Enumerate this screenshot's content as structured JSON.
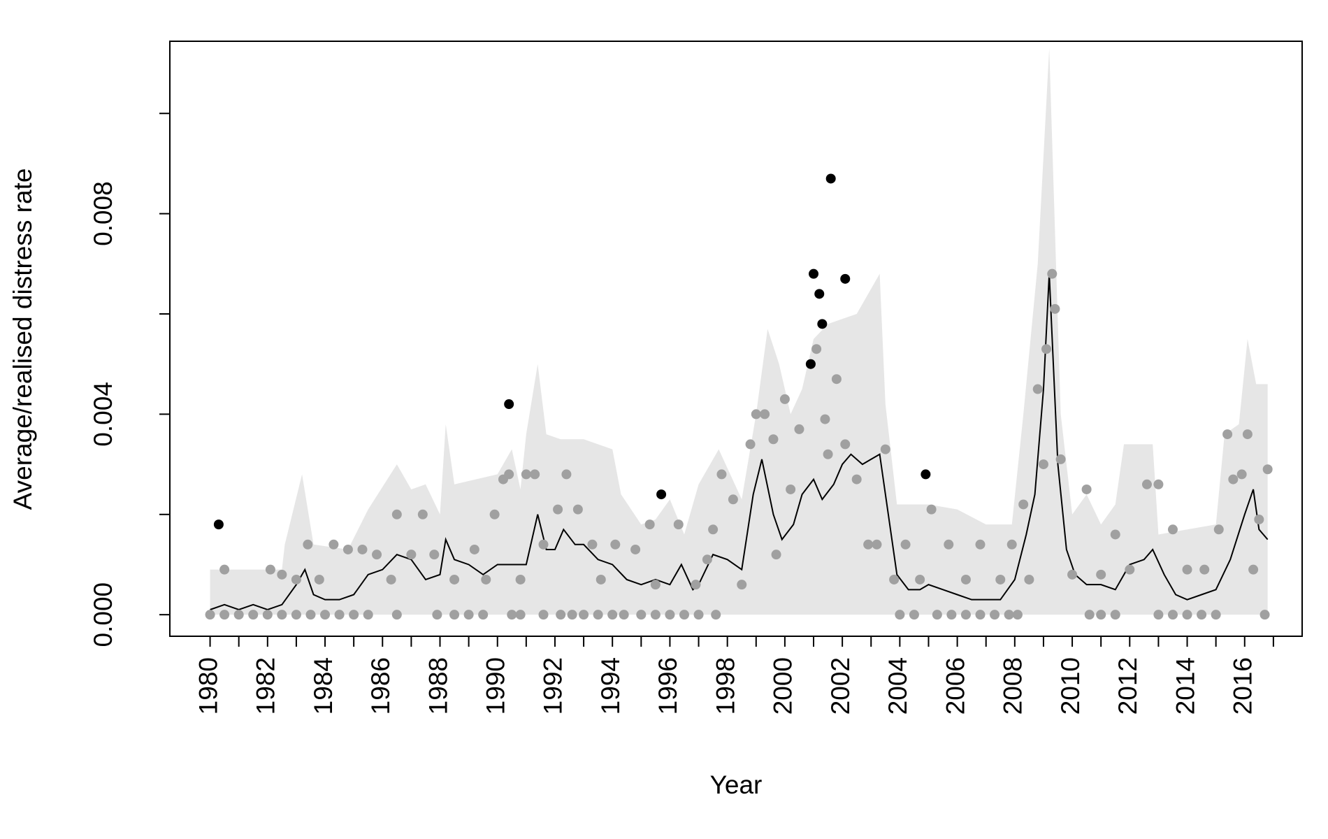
{
  "chart_data": {
    "type": "line",
    "xlabel": "Year",
    "ylabel": "Average/realised distress rate",
    "xlim": [
      1978.6,
      2018.0
    ],
    "ylim": [
      -0.00043,
      0.01144
    ],
    "xticks": [
      1980,
      1982,
      1984,
      1986,
      1988,
      1990,
      1992,
      1994,
      1996,
      1998,
      2000,
      2002,
      2004,
      2006,
      2008,
      2010,
      2012,
      2014,
      2016
    ],
    "xminor_ticks": [
      1981,
      1983,
      1985,
      1987,
      1989,
      1991,
      1993,
      1995,
      1997,
      1999,
      2001,
      2003,
      2005,
      2007,
      2009,
      2011,
      2013,
      2015,
      2017
    ],
    "yticks": [
      {
        "value": 0,
        "label": "0.000"
      },
      {
        "value": 0.004,
        "label": "0.004"
      },
      {
        "value": 0.008,
        "label": "0.008"
      }
    ],
    "yminor_ticks": [
      0.002,
      0.006,
      0.01
    ],
    "grid": false,
    "series": [
      {
        "type": "area",
        "color": "#e6e6e6",
        "x": [
          1980,
          1982.5,
          1982.6,
          1983.2,
          1983.6,
          1984.8,
          1985.5,
          1986.5,
          1987,
          1987.5,
          1988,
          1988.2,
          1988.5,
          1990,
          1990.5,
          1990.8,
          1991,
          1991.4,
          1991.7,
          1992.2,
          1993,
          1994,
          1994.3,
          1995,
          1995.5,
          1996,
          1996.5,
          1997,
          1997.7,
          1998.5,
          1999,
          1999.4,
          1999.8,
          2000.2,
          2000.6,
          2001,
          2001.5,
          2002,
          2002.5,
          2003,
          2003.3,
          2003.5,
          2003.9,
          2005,
          2006,
          2007,
          2007.9,
          2008.3,
          2008.8,
          2009.2,
          2009.6,
          2010,
          2010.5,
          2011,
          2011.5,
          2011.8,
          2012.8,
          2013,
          2015,
          2015.3,
          2015.8,
          2016.1,
          2016.4,
          2016.8
        ],
        "values": [
          0.0009,
          0.0009,
          0.0014,
          0.0028,
          0.0014,
          0.0013,
          0.0021,
          0.003,
          0.0025,
          0.0026,
          0.002,
          0.0038,
          0.0026,
          0.0028,
          0.0033,
          0.0025,
          0.0036,
          0.005,
          0.0036,
          0.0035,
          0.0035,
          0.0033,
          0.0024,
          0.0018,
          0.0019,
          0.0023,
          0.0016,
          0.0026,
          0.0033,
          0.0023,
          0.004,
          0.0057,
          0.005,
          0.004,
          0.0045,
          0.0055,
          0.0058,
          0.0059,
          0.006,
          0.0065,
          0.0068,
          0.0042,
          0.0022,
          0.0022,
          0.0021,
          0.0018,
          0.0018,
          0.004,
          0.007,
          0.0113,
          0.004,
          0.002,
          0.0024,
          0.0018,
          0.0022,
          0.0034,
          0.0034,
          0.0016,
          0.0018,
          0.0036,
          0.0038,
          0.0055,
          0.0046,
          0.0046
        ]
      },
      {
        "type": "line",
        "color": "#000000",
        "x": [
          1980,
          1980.5,
          1981,
          1981.5,
          1982,
          1982.5,
          1983,
          1983.3,
          1983.6,
          1984,
          1984.5,
          1985,
          1985.5,
          1986,
          1986.5,
          1987,
          1987.5,
          1988,
          1988.2,
          1988.5,
          1989,
          1989.5,
          1990,
          1990.5,
          1991,
          1991.4,
          1991.7,
          1992,
          1992.3,
          1992.7,
          1993,
          1993.5,
          1994,
          1994.5,
          1995,
          1995.5,
          1996,
          1996.4,
          1996.8,
          1997,
          1997.5,
          1998,
          1998.5,
          1998.9,
          1999.2,
          1999.6,
          1999.9,
          2000.3,
          2000.6,
          2001,
          2001.3,
          2001.7,
          2002,
          2002.3,
          2002.7,
          2003,
          2003.3,
          2003.6,
          2003.9,
          2004.3,
          2004.7,
          2005,
          2005.5,
          2006,
          2006.5,
          2007,
          2007.5,
          2008,
          2008.4,
          2008.7,
          2009,
          2009.2,
          2009.5,
          2009.8,
          2010.1,
          2010.5,
          2011,
          2011.5,
          2012,
          2012.5,
          2012.8,
          2013.2,
          2013.6,
          2014,
          2014.5,
          2015,
          2015.5,
          2016,
          2016.3,
          2016.5,
          2016.8
        ],
        "values": [
          0.0001,
          0.0002,
          0.0001,
          0.0002,
          0.0001,
          0.0002,
          0.0006,
          0.0009,
          0.0004,
          0.0003,
          0.0003,
          0.0004,
          0.0008,
          0.0009,
          0.0012,
          0.0011,
          0.0007,
          0.0008,
          0.0015,
          0.0011,
          0.001,
          0.0008,
          0.001,
          0.001,
          0.001,
          0.002,
          0.0013,
          0.0013,
          0.0017,
          0.0014,
          0.0014,
          0.0011,
          0.001,
          0.0007,
          0.0006,
          0.0007,
          0.0006,
          0.001,
          0.0005,
          0.0006,
          0.0012,
          0.0011,
          0.0009,
          0.0024,
          0.0031,
          0.002,
          0.0015,
          0.0018,
          0.0024,
          0.0027,
          0.0023,
          0.0026,
          0.003,
          0.0032,
          0.003,
          0.0031,
          0.0032,
          0.002,
          0.0008,
          0.0005,
          0.0005,
          0.0006,
          0.0005,
          0.0004,
          0.0003,
          0.0003,
          0.0003,
          0.0007,
          0.0016,
          0.0024,
          0.0045,
          0.0068,
          0.003,
          0.0013,
          0.0008,
          0.0006,
          0.0006,
          0.0005,
          0.001,
          0.0011,
          0.0013,
          0.0008,
          0.0004,
          0.0003,
          0.0004,
          0.0005,
          0.0011,
          0.002,
          0.0025,
          0.0017,
          0.0015
        ]
      },
      {
        "type": "scatter",
        "color": "#a0a0a0",
        "x": [
          1980,
          1980.5,
          1981,
          1981.5,
          1982,
          1982.5,
          1983,
          1983.5,
          1984,
          1984.5,
          1985,
          1985.5,
          1986.5,
          1987.9,
          1988.5,
          1989,
          1989.5,
          1990.5,
          1990.8,
          1991.6,
          1992.2,
          1992.6,
          1993,
          1993.5,
          1994,
          1994.4,
          1995,
          1995.5,
          1996,
          1996.5,
          1997,
          1997.6,
          2004,
          2004.5,
          2005.3,
          2005.8,
          2006.3,
          2006.8,
          2007.3,
          2007.8,
          2008.1,
          2010.6,
          2011,
          2011.5,
          2013,
          2013.5,
          2014,
          2014.5,
          2015,
          2016.7,
          1980.5,
          1982.1,
          1982.5,
          1983,
          1983.4,
          1983.8,
          1984.3,
          1984.8,
          1985.3,
          1985.8,
          1986.3,
          1986.5,
          1987,
          1987.4,
          1987.8,
          1988.5,
          1989.2,
          1989.6,
          1989.9,
          1990.2,
          1990.4,
          1990.8,
          1991,
          1991.3,
          1991.6,
          1992.1,
          1992.4,
          1992.8,
          1993.3,
          1993.6,
          1994.1,
          1994.8,
          1995.3,
          1995.5,
          1996.3,
          1996.9,
          1997.3,
          1997.5,
          1997.8,
          1998.2,
          1998.5,
          1998.8,
          1999,
          1999.3,
          1999.6,
          1999.7,
          2000,
          2000.2,
          2000.5,
          2000.9,
          2001.1,
          2001.4,
          2001.5,
          2001.8,
          2002.1,
          2002.5,
          2002.9,
          2003.2,
          2003.5,
          2003.8,
          2004.2,
          2004.7,
          2005.1,
          2005.7,
          2006.3,
          2006.8,
          2007.5,
          2007.9,
          2008.3,
          2008.5,
          2008.8,
          2009,
          2009.1,
          2009.3,
          2009.4,
          2009.6,
          2010,
          2010.5,
          2011,
          2011.5,
          2012,
          2012.6,
          2013,
          2013.5,
          2014,
          2014.6,
          2015.1,
          2015.4,
          2015.6,
          2015.9,
          2016.1,
          2016.3,
          2016.5,
          2016.8
        ],
        "values": [
          0,
          0,
          0,
          0,
          0,
          0,
          0,
          0,
          0,
          0,
          0,
          0,
          0,
          0,
          0,
          0,
          0,
          0,
          0,
          0,
          0,
          0,
          0,
          0,
          0,
          0,
          0,
          0,
          0,
          0,
          0,
          0,
          0,
          0,
          0,
          0,
          0,
          0,
          0,
          0,
          0,
          0,
          0,
          0,
          0,
          0,
          0,
          0,
          0,
          0,
          0.0009,
          0.0009,
          0.0008,
          0.0007,
          0.0014,
          0.0007,
          0.0014,
          0.0013,
          0.0013,
          0.0012,
          0.0007,
          0.002,
          0.0012,
          0.002,
          0.0012,
          0.0007,
          0.0013,
          0.0007,
          0.002,
          0.0027,
          0.0028,
          0.0007,
          0.0028,
          0.0028,
          0.0014,
          0.0021,
          0.0028,
          0.0021,
          0.0014,
          0.0007,
          0.0014,
          0.0013,
          0.0018,
          0.0006,
          0.0018,
          0.0006,
          0.0011,
          0.0017,
          0.0028,
          0.0023,
          0.0006,
          0.0034,
          0.004,
          0.004,
          0.0035,
          0.0012,
          0.0043,
          0.0025,
          0.0037,
          0.005,
          0.0053,
          0.0039,
          0.0032,
          0.0047,
          0.0034,
          0.0027,
          0.0014,
          0.0014,
          0.0033,
          0.0007,
          0.0014,
          0.0007,
          0.0021,
          0.0014,
          0.0007,
          0.0014,
          0.0007,
          0.0014,
          0.0022,
          0.0007,
          0.0045,
          0.003,
          0.0053,
          0.0068,
          0.0061,
          0.0031,
          0.0008,
          0.0025,
          0.0008,
          0.0016,
          0.0009,
          0.0026,
          0.0026,
          0.0017,
          0.0009,
          0.0009,
          0.0017,
          0.0036,
          0.0027,
          0.0028,
          0.0036,
          0.0009,
          0.0019,
          0.0029
        ]
      },
      {
        "type": "scatter",
        "color": "#000000",
        "x": [
          1980.3,
          1990.4,
          1995.7,
          2000.9,
          2001.0,
          2001.2,
          2001.3,
          2001.6,
          2002.1,
          2004.9
        ],
        "values": [
          0.0018,
          0.0042,
          0.0024,
          0.005,
          0.0068,
          0.0064,
          0.0058,
          0.0087,
          0.0067,
          0.0028
        ]
      }
    ]
  }
}
